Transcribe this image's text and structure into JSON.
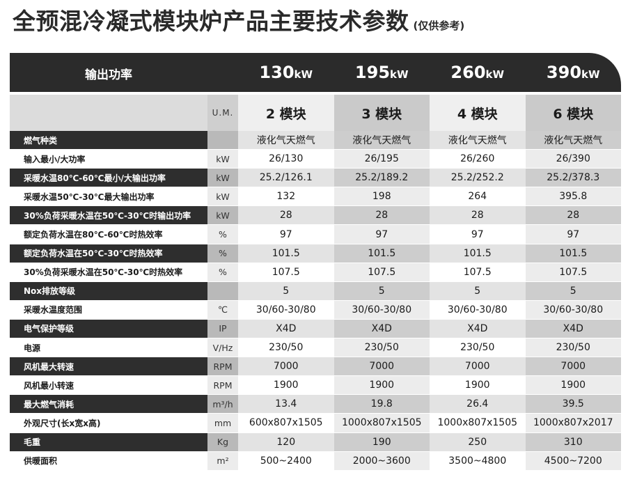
{
  "header": {
    "title": "全预混冷凝式模块炉产品主要技术参数",
    "note": "(仅供参考)"
  },
  "table": {
    "output_label": "输出功率",
    "unit_header": "U.M.",
    "powers": [
      {
        "num": "130",
        "unit": "kW"
      },
      {
        "num": "195",
        "unit": "kW"
      },
      {
        "num": "260",
        "unit": "kW"
      },
      {
        "num": "390",
        "unit": "kW"
      }
    ],
    "modules": [
      "2 模块",
      "3 模块",
      "4 模块",
      "6 模块"
    ],
    "rows": [
      {
        "label": "燃气种类",
        "unit": "",
        "values": [
          "液化气天燃气",
          "液化气天燃气",
          "液化气天燃气",
          "液化气天燃气"
        ],
        "style": "dark"
      },
      {
        "label": "输入最小/大功率",
        "unit": "kW",
        "values": [
          "26/130",
          "26/195",
          "26/260",
          "26/390"
        ],
        "style": "light"
      },
      {
        "label": "采暖水温80℃-60℃最小/大输出功率",
        "unit": "kW",
        "values": [
          "25.2/126.1",
          "25.2/189.2",
          "25.2/252.2",
          "25.2/378.3"
        ],
        "style": "dark"
      },
      {
        "label": "采暖水温50℃-30℃最大输出功率",
        "unit": "kW",
        "values": [
          "132",
          "198",
          "264",
          "395.8"
        ],
        "style": "light"
      },
      {
        "label": "30%负荷采暖水温在50℃-30℃时输出功率",
        "unit": "kW",
        "values": [
          "28",
          "28",
          "28",
          "28"
        ],
        "style": "dark"
      },
      {
        "label": "额定负荷水温在80℃-60℃时热效率",
        "unit": "%",
        "values": [
          "97",
          "97",
          "97",
          "97"
        ],
        "style": "light"
      },
      {
        "label": "额定负荷水温在50℃-30℃时热效率",
        "unit": "%",
        "values": [
          "101.5",
          "101.5",
          "101.5",
          "101.5"
        ],
        "style": "dark"
      },
      {
        "label": "30%负荷采暖水温在50℃-30℃时热效率",
        "unit": "%",
        "values": [
          "107.5",
          "107.5",
          "107.5",
          "107.5"
        ],
        "style": "light"
      },
      {
        "label": "Nox排放等级",
        "unit": "",
        "values": [
          "5",
          "5",
          "5",
          "5"
        ],
        "style": "dark"
      },
      {
        "label": "采暖水温度范围",
        "unit": "℃",
        "values": [
          "30/60-30/80",
          "30/60-30/80",
          "30/60-30/80",
          "30/60-30/80"
        ],
        "style": "light"
      },
      {
        "label": "电气保护等级",
        "unit": "IP",
        "values": [
          "X4D",
          "X4D",
          "X4D",
          "X4D"
        ],
        "style": "dark"
      },
      {
        "label": "电源",
        "unit": "V/Hz",
        "values": [
          "230/50",
          "230/50",
          "230/50",
          "230/50"
        ],
        "style": "light"
      },
      {
        "label": "风机最大转速",
        "unit": "RPM",
        "values": [
          "7000",
          "7000",
          "7000",
          "7000"
        ],
        "style": "dark"
      },
      {
        "label": "风机最小转速",
        "unit": "RPM",
        "values": [
          "1900",
          "1900",
          "1900",
          "1900"
        ],
        "style": "light"
      },
      {
        "label": "最大燃气消耗",
        "unit": "m³/h",
        "values": [
          "13.4",
          "19.8",
          "26.4",
          "39.5"
        ],
        "style": "dark"
      },
      {
        "label": "外观尺寸(长x宽x高)",
        "unit": "mm",
        "values": [
          "600x807x1505",
          "1000x807x1505",
          "1000x807x1505",
          "1000x807x2017"
        ],
        "style": "light"
      },
      {
        "label": "毛重",
        "unit": "Kg",
        "values": [
          "120",
          "190",
          "250",
          "310"
        ],
        "style": "dark"
      },
      {
        "label": "供暖面积",
        "unit": "m²",
        "values": [
          "500~2400",
          "2000~3600",
          "3500~4800",
          "4500~7200"
        ],
        "style": "light"
      }
    ]
  }
}
